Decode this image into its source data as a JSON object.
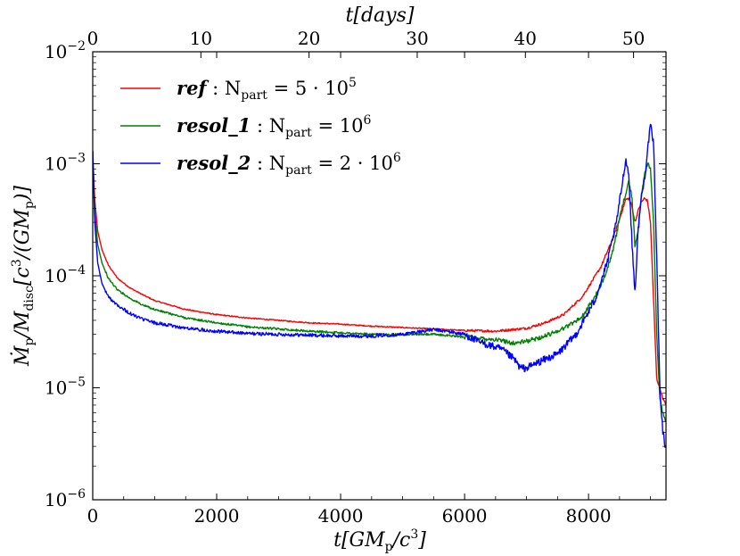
{
  "chart_data": {
    "type": "line",
    "yscale": "log",
    "xlim": [
      0,
      9250
    ],
    "ylim": [
      1e-06,
      0.01
    ],
    "x_ticks": [
      0,
      2000,
      4000,
      6000,
      8000
    ],
    "x_tick_labels": [
      "0",
      "2000",
      "4000",
      "6000",
      "8000"
    ],
    "top_ticks_days": [
      0,
      10,
      20,
      30,
      40,
      50
    ],
    "top_tick_labels": [
      "0",
      "10",
      "20",
      "30",
      "40",
      "50"
    ],
    "days_max": 53,
    "y_ticks": [
      1e-06,
      1e-05,
      0.0001,
      0.001,
      0.01
    ],
    "y_tick_labels": [
      {
        "base": "10",
        "exp": "−6"
      },
      {
        "base": "10",
        "exp": "−5"
      },
      {
        "base": "10",
        "exp": "−4"
      },
      {
        "base": "10",
        "exp": "−3"
      },
      {
        "base": "10",
        "exp": "−2"
      }
    ],
    "xlabel": {
      "main": "t[GM",
      "sub": "p",
      "mid": "/c",
      "sup": "3",
      "end": "]"
    },
    "top_xlabel": {
      "main": "t[days]"
    },
    "ylabel": {
      "p1": "Ṁ",
      "s1": "p",
      "p2": "/M",
      "s2": "disc",
      "p3": "[c",
      "s3": "3",
      "p4": "/(GM",
      "s4": "p",
      "p5": ")]"
    },
    "legend_position": "upper-left",
    "series": [
      {
        "name": "ref",
        "label_main": "ref",
        "label_rest": " : N",
        "label_sub": "part",
        "label_eq": " = 5 · 10",
        "label_sup": "5",
        "color": "#ff0000",
        "noise": 0.01,
        "x": [
          0,
          30,
          80,
          150,
          250,
          400,
          600,
          800,
          1000,
          1500,
          2000,
          2500,
          3000,
          3500,
          4000,
          4500,
          5000,
          5500,
          6000,
          6500,
          7000,
          7300,
          7600,
          7900,
          8200,
          8400,
          8500,
          8600,
          8650,
          8700,
          8750,
          8800,
          8850,
          8900,
          8950,
          9000,
          9050,
          9100,
          9150,
          9200,
          9250
        ],
        "y": [
          0.0013,
          0.0005,
          0.00025,
          0.00017,
          0.000125,
          9.5e-05,
          7.8e-05,
          6.8e-05,
          6e-05,
          5e-05,
          4.5e-05,
          4.2e-05,
          4e-05,
          3.8e-05,
          3.7e-05,
          3.55e-05,
          3.45e-05,
          3.35e-05,
          3.25e-05,
          3.2e-05,
          3.4e-05,
          3.8e-05,
          4.5e-05,
          6.5e-05,
          0.00012,
          0.00022,
          0.00032,
          0.00048,
          0.00049,
          0.00042,
          0.0003,
          0.00038,
          0.00045,
          0.00049,
          0.00047,
          0.0003,
          6e-05,
          1.2e-05,
          1e-05,
          8e-06,
          7e-06
        ]
      },
      {
        "name": "resol_1",
        "label_main": "resol_1",
        "label_rest": " : N",
        "label_sub": "part",
        "label_eq": " = 10",
        "label_sup": "6",
        "color": "#008000",
        "noise": 0.018,
        "x": [
          0,
          30,
          80,
          150,
          250,
          400,
          600,
          800,
          1000,
          1500,
          2000,
          2500,
          3000,
          3500,
          4000,
          4500,
          5000,
          5500,
          6000,
          6500,
          6800,
          7000,
          7300,
          7600,
          7900,
          8200,
          8400,
          8500,
          8600,
          8650,
          8700,
          8750,
          8800,
          8850,
          8900,
          8950,
          9000,
          9050,
          9100,
          9150,
          9200,
          9250
        ],
        "y": [
          0.0013,
          0.0004,
          0.00019,
          0.00013,
          9.5e-05,
          7.5e-05,
          6.3e-05,
          5.5e-05,
          5e-05,
          4.2e-05,
          3.8e-05,
          3.5e-05,
          3.35e-05,
          3.2e-05,
          3.1e-05,
          3e-05,
          3e-05,
          3e-05,
          2.85e-05,
          2.7e-05,
          2.5e-05,
          2.6e-05,
          2.9e-05,
          3.4e-05,
          4.3e-05,
          8e-05,
          0.00017,
          0.00032,
          0.00055,
          0.0007,
          0.0005,
          0.00018,
          0.00026,
          0.0005,
          0.0008,
          0.001,
          0.0009,
          0.0003,
          3e-05,
          8e-06,
          6e-06,
          5e-06
        ]
      },
      {
        "name": "resol_2",
        "label_main": "resol_2",
        "label_rest": " : N",
        "label_sub": "part",
        "label_eq": " = 2 · 10",
        "label_sup": "6",
        "color": "#0000ff",
        "noise": 0.03,
        "x": [
          0,
          30,
          80,
          150,
          250,
          400,
          600,
          800,
          1000,
          1500,
          2000,
          2500,
          3000,
          3500,
          4000,
          4500,
          5000,
          5300,
          5500,
          5700,
          6000,
          6200,
          6400,
          6600,
          6800,
          6900,
          7000,
          7200,
          7500,
          7800,
          8100,
          8300,
          8450,
          8550,
          8600,
          8650,
          8700,
          8750,
          8800,
          8850,
          8900,
          8950,
          9000,
          9050,
          9100,
          9150,
          9200,
          9250
        ],
        "y": [
          0.0013,
          0.00032,
          0.00013,
          8.5e-05,
          6.5e-05,
          5.5e-05,
          4.6e-05,
          4.1e-05,
          3.8e-05,
          3.4e-05,
          3.2e-05,
          3.05e-05,
          3e-05,
          2.95e-05,
          2.9e-05,
          2.9e-05,
          3e-05,
          3.2e-05,
          3.3e-05,
          3.2e-05,
          3e-05,
          2.6e-05,
          2.4e-05,
          2.2e-05,
          1.8e-05,
          1.5e-05,
          1.5e-05,
          1.7e-05,
          2e-05,
          3e-05,
          6e-05,
          0.00013,
          0.0003,
          0.0007,
          0.0011,
          0.0008,
          0.0002,
          7e-05,
          0.00025,
          0.0005,
          0.0007,
          0.0013,
          0.0022,
          0.0015,
          0.00015,
          1e-05,
          4e-06,
          2.8e-06
        ]
      }
    ]
  }
}
